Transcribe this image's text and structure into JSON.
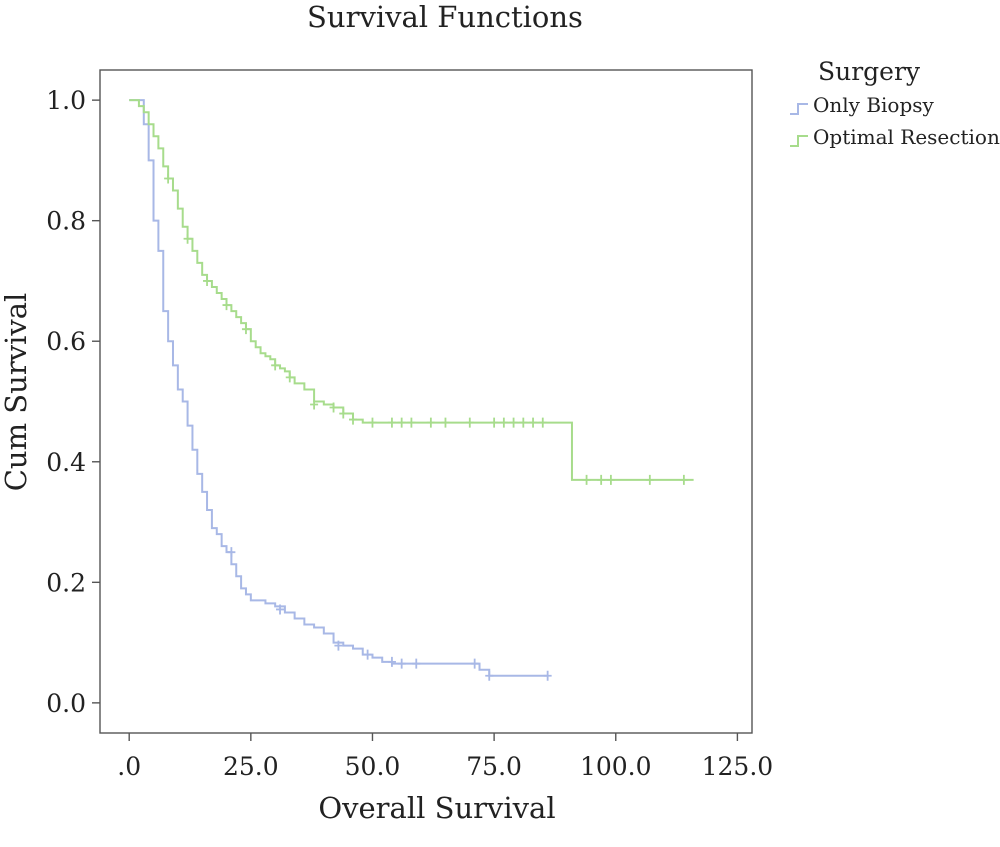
{
  "chart_data": {
    "type": "line",
    "step": true,
    "title": "Survival Functions",
    "xlabel": "Overall Survival",
    "ylabel": "Cum Survival",
    "xlim": [
      -6,
      128
    ],
    "ylim": [
      -0.05,
      1.05
    ],
    "xticks": [
      0,
      25,
      50,
      75,
      100,
      125
    ],
    "xtick_labels": [
      ".0",
      "25.0",
      "50.0",
      "75.0",
      "100.0",
      "125.0"
    ],
    "yticks": [
      0,
      0.2,
      0.4,
      0.6,
      0.8,
      1.0
    ],
    "ytick_labels": [
      "0.0",
      "0.2",
      "0.4",
      "0.6",
      "0.8",
      "1.0"
    ],
    "grid": false,
    "legend": {
      "title": "Surgery",
      "placement": "top-right"
    },
    "series": [
      {
        "name": "Only Biopsy",
        "color": "#a8b8e6",
        "x": [
          0,
          3,
          4,
          5,
          6,
          7,
          8,
          9,
          10,
          11,
          12,
          13,
          14,
          15,
          16,
          17,
          18,
          19,
          20,
          21,
          22,
          23,
          24,
          25,
          28,
          30,
          32,
          34,
          36,
          38,
          40,
          42,
          44,
          46,
          48,
          50,
          52,
          54,
          72,
          74,
          86
        ],
        "y": [
          1.0,
          0.96,
          0.9,
          0.8,
          0.75,
          0.65,
          0.6,
          0.56,
          0.52,
          0.5,
          0.46,
          0.42,
          0.38,
          0.35,
          0.32,
          0.29,
          0.28,
          0.26,
          0.25,
          0.23,
          0.21,
          0.19,
          0.18,
          0.17,
          0.165,
          0.16,
          0.15,
          0.14,
          0.13,
          0.125,
          0.115,
          0.1,
          0.095,
          0.09,
          0.08,
          0.075,
          0.068,
          0.065,
          0.055,
          0.045,
          0.045
        ],
        "censored_x": [
          21,
          31,
          43,
          49,
          54,
          56,
          59,
          71,
          74,
          86
        ],
        "censored_y": [
          0.25,
          0.155,
          0.095,
          0.08,
          0.068,
          0.065,
          0.065,
          0.065,
          0.045,
          0.045
        ]
      },
      {
        "name": "Optimal Resection",
        "color": "#a7dc8c",
        "x": [
          0,
          2,
          3,
          4,
          5,
          6,
          7,
          8,
          9,
          10,
          11,
          12,
          13,
          14,
          15,
          16,
          17,
          18,
          19,
          20,
          21,
          22,
          23,
          24,
          25,
          26,
          27,
          28,
          29,
          30,
          31,
          32,
          33,
          34,
          36,
          38,
          40,
          42,
          44,
          46,
          48,
          91,
          116
        ],
        "y": [
          1.0,
          0.99,
          0.98,
          0.96,
          0.94,
          0.92,
          0.89,
          0.87,
          0.85,
          0.82,
          0.79,
          0.77,
          0.75,
          0.73,
          0.71,
          0.7,
          0.69,
          0.68,
          0.67,
          0.66,
          0.65,
          0.64,
          0.63,
          0.62,
          0.6,
          0.59,
          0.58,
          0.575,
          0.57,
          0.56,
          0.555,
          0.55,
          0.54,
          0.53,
          0.52,
          0.5,
          0.495,
          0.49,
          0.48,
          0.47,
          0.465,
          0.37,
          0.37
        ],
        "censored_x": [
          8,
          12,
          16,
          20,
          24,
          30,
          33,
          38,
          42,
          44,
          46,
          50,
          54,
          56,
          58,
          62,
          65,
          70,
          75,
          77,
          79,
          81,
          83,
          85,
          94,
          97,
          99,
          107,
          114
        ],
        "censored_y": [
          0.87,
          0.77,
          0.7,
          0.66,
          0.62,
          0.56,
          0.54,
          0.495,
          0.49,
          0.48,
          0.47,
          0.465,
          0.465,
          0.465,
          0.465,
          0.465,
          0.465,
          0.465,
          0.465,
          0.465,
          0.465,
          0.465,
          0.465,
          0.465,
          0.37,
          0.37,
          0.37,
          0.37,
          0.37
        ]
      }
    ]
  }
}
